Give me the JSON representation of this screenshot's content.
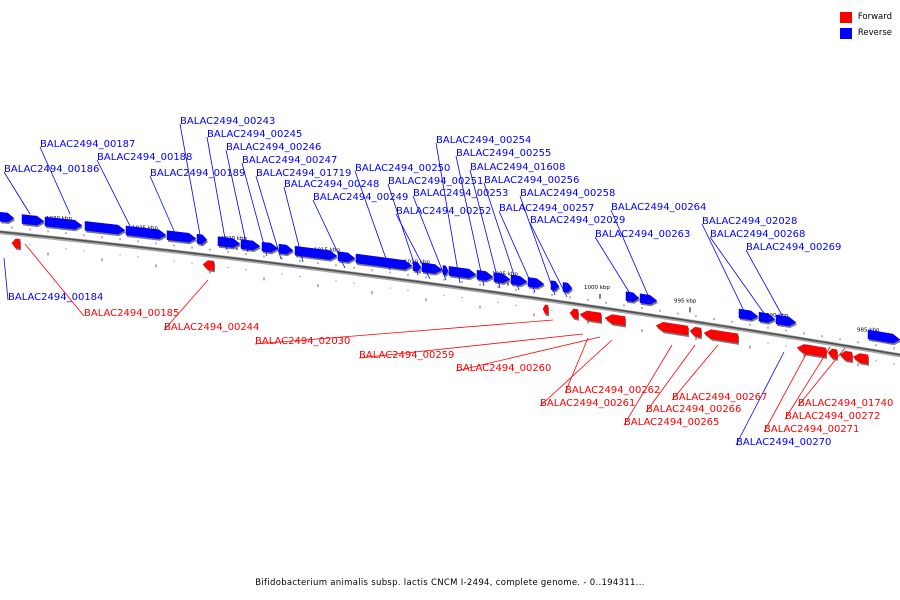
{
  "legend": {
    "forward_label": "Forward",
    "reverse_label": "Reverse",
    "forward_color": "#ff0000",
    "reverse_color": "#0000ff"
  },
  "caption": "Bifidobacterium animalis subsp. lactis CNCM I-2494, complete genome. - 0..194311...",
  "ticks": [
    "1030 kbp",
    "1025 kbp",
    "1020 kbp",
    "1015 kbp",
    "1010 kbp",
    "1005 kbp",
    "1000 kbp",
    "995 kbp",
    "990 kbp",
    "985 kbp"
  ],
  "reverse_genes": [
    "BALAC2494_00184",
    "BALAC2494_00186",
    "BALAC2494_00187",
    "BALAC2494_00188",
    "BALAC2494_00189",
    "BALAC2494_00243",
    "BALAC2494_00245",
    "BALAC2494_00246",
    "BALAC2494_00247",
    "BALAC2494_01719",
    "BALAC2494_00248",
    "BALAC2494_00249",
    "BALAC2494_00250",
    "BALAC2494_00251",
    "BALAC2494_00252",
    "BALAC2494_00253",
    "BALAC2494_00254",
    "BALAC2494_00255",
    "BALAC2494_01608",
    "BALAC2494_00256",
    "BALAC2494_00257",
    "BALAC2494_00258",
    "BALAC2494_02029",
    "BALAC2494_00263",
    "BALAC2494_00264",
    "BALAC2494_02028",
    "BALAC2494_00268",
    "BALAC2494_00269",
    "BALAC2494_00270"
  ],
  "forward_genes": [
    "BALAC2494_00185",
    "BALAC2494_00244",
    "BALAC2494_02030",
    "BALAC2494_00259",
    "BALAC2494_00260",
    "BALAC2494_00262",
    "BALAC2494_00261",
    "BALAC2494_00267",
    "BALAC2494_00266",
    "BALAC2494_00265",
    "BALAC2494_01740",
    "BALAC2494_00272",
    "BALAC2494_00271"
  ]
}
